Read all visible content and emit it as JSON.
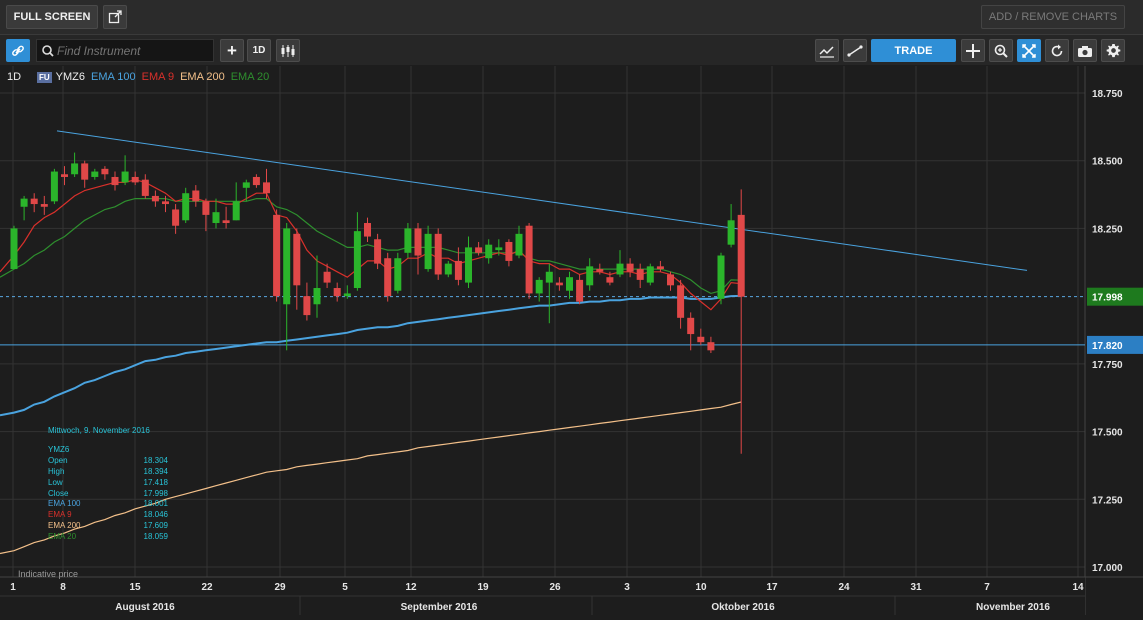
{
  "toolbar": {
    "fullscreen": "FULL SCREEN",
    "add_remove": "ADD / REMOVE CHARTS",
    "search_placeholder": "Find Instrument",
    "interval": "1D",
    "trade": "TRADE"
  },
  "legend": {
    "interval": "1D",
    "badge": "FU",
    "symbol": "YMZ6",
    "items": [
      {
        "label": "EMA 100",
        "color": "#4aa3df"
      },
      {
        "label": "EMA 9",
        "color": "#d9302b"
      },
      {
        "label": "EMA 200",
        "color": "#f3c08a"
      },
      {
        "label": "EMA 20",
        "color": "#2e8f2e"
      }
    ]
  },
  "infobox": {
    "date": "Mittwoch, 9. November 2016",
    "symbol": "YMZ6",
    "rows": [
      {
        "label": "Open",
        "value": "18.304",
        "color": "#29c4d8"
      },
      {
        "label": "High",
        "value": "18.394",
        "color": "#29c4d8"
      },
      {
        "label": "Low",
        "value": "17.418",
        "color": "#29c4d8"
      },
      {
        "label": "Close",
        "value": "17.998",
        "color": "#29c4d8"
      },
      {
        "label": "EMA 100",
        "value": "18.001",
        "color": "#4aa3df"
      },
      {
        "label": "EMA 9",
        "value": "18.046",
        "color": "#d9302b"
      },
      {
        "label": "EMA 200",
        "value": "17.609",
        "color": "#f3c08a"
      },
      {
        "label": "EMA 20",
        "value": "18.059",
        "color": "#2e8f2e"
      }
    ],
    "values_color": "#29c4d8"
  },
  "indicative_price": "Indicative price",
  "price_badges": {
    "last": "17.998",
    "level": "17.820"
  },
  "chart_data": {
    "type": "candlestick",
    "y_ticks": [
      "18.750",
      "18.500",
      "18.250",
      "17.750",
      "17.500",
      "17.250",
      "17.000"
    ],
    "y_range": [
      17.0,
      18.78
    ],
    "x_ticks": [
      "1",
      "8",
      "15",
      "22",
      "29",
      "5",
      "12",
      "19",
      "26",
      "3",
      "10",
      "17",
      "24",
      "31",
      "7",
      "14"
    ],
    "months": [
      "August 2016",
      "September 2016",
      "Oktober 2016",
      "November 2016"
    ],
    "horizontal_level": 17.82,
    "last_price": 17.998,
    "trendline": {
      "start": [
        0,
        18.61
      ],
      "end": [
        71,
        18.095
      ]
    },
    "candles": [
      [
        18.1,
        18.25,
        18.26,
        18.1
      ],
      [
        18.33,
        18.36,
        18.37,
        18.28
      ],
      [
        18.36,
        18.34,
        18.38,
        18.31
      ],
      [
        18.34,
        18.33,
        18.37,
        18.3
      ],
      [
        18.35,
        18.46,
        18.47,
        18.34
      ],
      [
        18.45,
        18.44,
        18.48,
        18.41
      ],
      [
        18.45,
        18.49,
        18.53,
        18.44
      ],
      [
        18.49,
        18.43,
        18.5,
        18.4
      ],
      [
        18.44,
        18.46,
        18.47,
        18.43
      ],
      [
        18.47,
        18.45,
        18.48,
        18.43
      ],
      [
        18.44,
        18.41,
        18.46,
        18.39
      ],
      [
        18.42,
        18.46,
        18.52,
        18.41
      ],
      [
        18.44,
        18.42,
        18.46,
        18.41
      ],
      [
        18.43,
        18.37,
        18.45,
        18.36
      ],
      [
        18.37,
        18.35,
        18.39,
        18.33
      ],
      [
        18.35,
        18.34,
        18.37,
        18.31
      ],
      [
        18.32,
        18.26,
        18.34,
        18.23
      ],
      [
        18.28,
        18.38,
        18.4,
        18.27
      ],
      [
        18.39,
        18.35,
        18.41,
        18.33
      ],
      [
        18.35,
        18.3,
        18.36,
        18.24
      ],
      [
        18.27,
        18.31,
        18.36,
        18.25
      ],
      [
        18.28,
        18.27,
        18.33,
        18.25
      ],
      [
        18.28,
        18.35,
        18.42,
        18.28
      ],
      [
        18.4,
        18.42,
        18.43,
        18.35
      ],
      [
        18.44,
        18.41,
        18.45,
        18.4
      ],
      [
        18.42,
        18.38,
        18.47,
        18.36
      ],
      [
        18.3,
        18.0,
        18.32,
        17.98
      ],
      [
        17.97,
        18.25,
        18.27,
        17.8
      ],
      [
        18.23,
        18.04,
        18.25,
        17.95
      ],
      [
        18.0,
        17.93,
        18.05,
        17.91
      ],
      [
        17.97,
        18.03,
        18.15,
        17.92
      ],
      [
        18.09,
        18.05,
        18.12,
        18.03
      ],
      [
        18.03,
        18.0,
        18.05,
        17.98
      ],
      [
        18.0,
        18.01,
        18.04,
        17.99
      ],
      [
        18.03,
        18.24,
        18.31,
        18.02
      ],
      [
        18.27,
        18.22,
        18.29,
        18.2
      ],
      [
        18.21,
        18.12,
        18.23,
        18.1
      ],
      [
        18.14,
        18.0,
        18.16,
        17.98
      ],
      [
        18.02,
        18.14,
        18.16,
        18.01
      ],
      [
        18.16,
        18.25,
        18.27,
        18.14
      ],
      [
        18.25,
        18.15,
        18.27,
        18.08
      ],
      [
        18.1,
        18.23,
        18.26,
        18.09
      ],
      [
        18.23,
        18.08,
        18.25,
        18.06
      ],
      [
        18.08,
        18.12,
        18.13,
        18.07
      ],
      [
        18.13,
        18.06,
        18.18,
        18.04
      ],
      [
        18.05,
        18.18,
        18.22,
        18.03
      ],
      [
        18.18,
        18.16,
        18.2,
        18.15
      ],
      [
        18.14,
        18.19,
        18.21,
        18.12
      ],
      [
        18.17,
        18.18,
        18.21,
        18.15
      ],
      [
        18.2,
        18.13,
        18.21,
        18.11
      ],
      [
        18.15,
        18.23,
        18.26,
        18.14
      ],
      [
        18.26,
        18.01,
        18.27,
        17.99
      ],
      [
        18.01,
        18.06,
        18.07,
        17.98
      ],
      [
        18.05,
        18.09,
        18.12,
        17.9
      ],
      [
        18.05,
        18.04,
        18.07,
        18.02
      ],
      [
        18.02,
        18.07,
        18.09,
        17.99
      ],
      [
        18.06,
        17.98,
        18.08,
        17.97
      ],
      [
        18.04,
        18.11,
        18.14,
        18.02
      ],
      [
        18.1,
        18.09,
        18.12,
        18.08
      ],
      [
        18.07,
        18.05,
        18.09,
        18.04
      ],
      [
        18.08,
        18.12,
        18.17,
        18.07
      ],
      [
        18.12,
        18.09,
        18.14,
        18.07
      ],
      [
        18.1,
        18.06,
        18.12,
        18.03
      ],
      [
        18.05,
        18.11,
        18.12,
        18.04
      ],
      [
        18.11,
        18.1,
        18.13,
        18.09
      ],
      [
        18.08,
        18.04,
        18.09,
        18.02
      ],
      [
        18.04,
        17.92,
        18.06,
        17.88
      ],
      [
        17.92,
        17.86,
        17.94,
        17.8
      ],
      [
        17.85,
        17.83,
        17.88,
        17.82
      ],
      [
        17.83,
        17.8,
        17.85,
        17.79
      ],
      [
        17.99,
        18.15,
        18.16,
        17.97
      ],
      [
        18.19,
        18.28,
        18.34,
        18.18
      ],
      [
        18.3,
        17.998,
        18.394,
        17.418
      ]
    ],
    "ema100": [
      17.57,
      17.58,
      17.6,
      17.61,
      17.63,
      17.645,
      17.66,
      17.68,
      17.69,
      17.705,
      17.72,
      17.73,
      17.745,
      17.76,
      17.765,
      17.775,
      17.78,
      17.79,
      17.795,
      17.8,
      17.805,
      17.81,
      17.815,
      17.82,
      17.825,
      17.83,
      17.83,
      17.835,
      17.84,
      17.845,
      17.85,
      17.855,
      17.86,
      17.865,
      17.875,
      17.88,
      17.885,
      17.885,
      17.89,
      17.9,
      17.905,
      17.91,
      17.915,
      17.92,
      17.925,
      17.93,
      17.935,
      17.94,
      17.945,
      17.95,
      17.955,
      17.96,
      17.965,
      17.965,
      17.97,
      17.975,
      17.975,
      17.98,
      17.98,
      17.985,
      17.985,
      17.99,
      17.99,
      17.995,
      17.995,
      17.995,
      17.995,
      17.99,
      17.99,
      17.99,
      17.995,
      18.0,
      18.001
    ],
    "ema200": [
      17.06,
      17.075,
      17.09,
      17.1,
      17.115,
      17.125,
      17.14,
      17.15,
      17.165,
      17.175,
      17.19,
      17.2,
      17.215,
      17.225,
      17.235,
      17.25,
      17.26,
      17.27,
      17.28,
      17.29,
      17.3,
      17.31,
      17.32,
      17.33,
      17.34,
      17.35,
      17.355,
      17.36,
      17.37,
      17.375,
      17.38,
      17.385,
      17.39,
      17.395,
      17.4,
      17.41,
      17.415,
      17.42,
      17.425,
      17.43,
      17.44,
      17.445,
      17.45,
      17.455,
      17.46,
      17.465,
      17.47,
      17.475,
      17.48,
      17.485,
      17.49,
      17.495,
      17.5,
      17.505,
      17.51,
      17.515,
      17.52,
      17.525,
      17.53,
      17.535,
      17.54,
      17.545,
      17.55,
      17.555,
      17.56,
      17.565,
      17.57,
      17.575,
      17.58,
      17.585,
      17.59,
      17.6,
      17.609
    ],
    "ema9": [
      18.15,
      18.2,
      18.26,
      18.29,
      18.31,
      18.34,
      18.37,
      18.39,
      18.4,
      18.41,
      18.42,
      18.42,
      18.43,
      18.42,
      18.4,
      18.38,
      18.35,
      18.36,
      18.36,
      18.35,
      18.35,
      18.34,
      18.34,
      18.36,
      18.38,
      18.38,
      18.3,
      18.29,
      18.24,
      18.17,
      18.13,
      18.11,
      18.09,
      18.07,
      18.1,
      18.13,
      18.13,
      18.1,
      18.11,
      18.14,
      18.14,
      18.16,
      18.14,
      18.14,
      18.12,
      18.13,
      18.14,
      18.15,
      18.16,
      18.15,
      18.17,
      18.13,
      18.12,
      18.12,
      18.1,
      18.1,
      18.08,
      18.09,
      18.09,
      18.08,
      18.09,
      18.09,
      18.08,
      18.09,
      18.09,
      18.08,
      18.05,
      18.01,
      17.98,
      17.95,
      17.99,
      18.05,
      18.046
    ],
    "ema20": [
      18.1,
      18.12,
      18.15,
      18.17,
      18.2,
      18.22,
      18.25,
      18.28,
      18.3,
      18.32,
      18.33,
      18.35,
      18.36,
      18.36,
      18.36,
      18.36,
      18.35,
      18.35,
      18.35,
      18.35,
      18.35,
      18.35,
      18.35,
      18.35,
      18.36,
      18.36,
      18.33,
      18.32,
      18.3,
      18.27,
      18.24,
      18.22,
      18.2,
      18.18,
      18.18,
      18.19,
      18.18,
      18.17,
      18.17,
      18.18,
      18.18,
      18.18,
      18.18,
      18.17,
      18.16,
      18.16,
      18.16,
      18.16,
      18.16,
      18.16,
      18.16,
      18.14,
      18.13,
      18.13,
      18.12,
      18.11,
      18.1,
      18.1,
      18.1,
      18.1,
      18.1,
      18.1,
      18.1,
      18.1,
      18.1,
      18.09,
      18.08,
      18.06,
      18.03,
      18.01,
      18.02,
      18.06,
      18.059
    ]
  }
}
